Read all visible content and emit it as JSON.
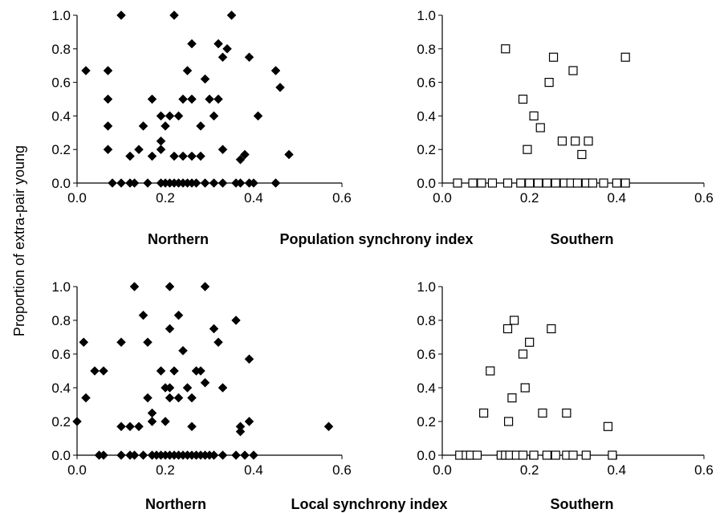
{
  "y_label": "Proportion of extra-pair young",
  "rows": [
    {
      "left_label": "Northern",
      "center_label": "Population synchrony index",
      "right_label": "Southern"
    },
    {
      "left_label": "Northern",
      "center_label": "Local synchrony index",
      "right_label": "Southern"
    }
  ],
  "chart_data": [
    {
      "type": "scatter",
      "name": "Northern - Population synchrony index",
      "marker": "filled-diamond",
      "color": "#000000",
      "xlim": [
        0,
        0.6
      ],
      "ylim": [
        0,
        1.0
      ],
      "xticks": [
        "0.0",
        "0.2",
        "0.4",
        "0.6"
      ],
      "yticks": [
        "0.0",
        "0.2",
        "0.4",
        "0.6",
        "0.8",
        "1.0"
      ],
      "points": [
        [
          0.02,
          0.67
        ],
        [
          0.07,
          0.67
        ],
        [
          0.07,
          0.5
        ],
        [
          0.07,
          0.34
        ],
        [
          0.07,
          0.2
        ],
        [
          0.1,
          1.0
        ],
        [
          0.12,
          0.16
        ],
        [
          0.14,
          0.2
        ],
        [
          0.15,
          0.34
        ],
        [
          0.17,
          0.5
        ],
        [
          0.17,
          0.16
        ],
        [
          0.19,
          0.4
        ],
        [
          0.19,
          0.25
        ],
        [
          0.19,
          0.2
        ],
        [
          0.2,
          0.34
        ],
        [
          0.21,
          0.4
        ],
        [
          0.22,
          1.0
        ],
        [
          0.22,
          0.16
        ],
        [
          0.23,
          0.4
        ],
        [
          0.24,
          0.5
        ],
        [
          0.24,
          0.16
        ],
        [
          0.25,
          0.67
        ],
        [
          0.26,
          0.83
        ],
        [
          0.26,
          0.5
        ],
        [
          0.26,
          0.16
        ],
        [
          0.28,
          0.34
        ],
        [
          0.28,
          0.16
        ],
        [
          0.29,
          0.62
        ],
        [
          0.3,
          0.5
        ],
        [
          0.31,
          0.4
        ],
        [
          0.32,
          0.5
        ],
        [
          0.32,
          0.83
        ],
        [
          0.33,
          0.75
        ],
        [
          0.33,
          0.2
        ],
        [
          0.34,
          0.8
        ],
        [
          0.35,
          1.0
        ],
        [
          0.37,
          0.14
        ],
        [
          0.38,
          0.17
        ],
        [
          0.39,
          0.75
        ],
        [
          0.41,
          0.4
        ],
        [
          0.45,
          0.67
        ],
        [
          0.46,
          0.57
        ],
        [
          0.48,
          0.17
        ],
        [
          0.08,
          0.0
        ],
        [
          0.1,
          0.0
        ],
        [
          0.12,
          0.0
        ],
        [
          0.13,
          0.0
        ],
        [
          0.16,
          0.0
        ],
        [
          0.19,
          0.0
        ],
        [
          0.2,
          0.0
        ],
        [
          0.21,
          0.0
        ],
        [
          0.22,
          0.0
        ],
        [
          0.23,
          0.0
        ],
        [
          0.24,
          0.0
        ],
        [
          0.25,
          0.0
        ],
        [
          0.26,
          0.0
        ],
        [
          0.27,
          0.0
        ],
        [
          0.29,
          0.0
        ],
        [
          0.31,
          0.0
        ],
        [
          0.33,
          0.0
        ],
        [
          0.36,
          0.0
        ],
        [
          0.37,
          0.0
        ],
        [
          0.39,
          0.0
        ],
        [
          0.4,
          0.0
        ],
        [
          0.45,
          0.0
        ]
      ]
    },
    {
      "type": "scatter",
      "name": "Southern - Population synchrony index",
      "marker": "open-square",
      "color": "#000000",
      "xlim": [
        0,
        0.6
      ],
      "ylim": [
        0,
        1.0
      ],
      "xticks": [
        "0.0",
        "0.2",
        "0.4",
        "0.6"
      ],
      "yticks": [
        "0.0",
        "0.2",
        "0.4",
        "0.6",
        "0.8",
        "1.0"
      ],
      "points": [
        [
          0.145,
          0.8
        ],
        [
          0.185,
          0.5
        ],
        [
          0.195,
          0.2
        ],
        [
          0.21,
          0.4
        ],
        [
          0.225,
          0.33
        ],
        [
          0.245,
          0.6
        ],
        [
          0.255,
          0.75
        ],
        [
          0.275,
          0.25
        ],
        [
          0.3,
          0.67
        ],
        [
          0.305,
          0.25
        ],
        [
          0.32,
          0.17
        ],
        [
          0.335,
          0.25
        ],
        [
          0.42,
          0.75
        ],
        [
          0.035,
          0.0
        ],
        [
          0.07,
          0.0
        ],
        [
          0.09,
          0.0
        ],
        [
          0.115,
          0.0
        ],
        [
          0.15,
          0.0
        ],
        [
          0.18,
          0.0
        ],
        [
          0.2,
          0.0
        ],
        [
          0.22,
          0.0
        ],
        [
          0.24,
          0.0
        ],
        [
          0.26,
          0.0
        ],
        [
          0.28,
          0.0
        ],
        [
          0.295,
          0.0
        ],
        [
          0.31,
          0.0
        ],
        [
          0.33,
          0.0
        ],
        [
          0.345,
          0.0
        ],
        [
          0.37,
          0.0
        ],
        [
          0.4,
          0.0
        ],
        [
          0.42,
          0.0
        ]
      ]
    },
    {
      "type": "scatter",
      "name": "Northern - Local synchrony index",
      "marker": "filled-diamond",
      "color": "#000000",
      "xlim": [
        0,
        0.6
      ],
      "ylim": [
        0,
        1.0
      ],
      "xticks": [
        "0.0",
        "0.2",
        "0.4",
        "0.6"
      ],
      "yticks": [
        "0.0",
        "0.2",
        "0.4",
        "0.6",
        "0.8",
        "1.0"
      ],
      "points": [
        [
          0.0,
          0.2
        ],
        [
          0.015,
          0.67
        ],
        [
          0.02,
          0.34
        ],
        [
          0.04,
          0.5
        ],
        [
          0.06,
          0.5
        ],
        [
          0.1,
          0.67
        ],
        [
          0.1,
          0.17
        ],
        [
          0.12,
          0.17
        ],
        [
          0.13,
          1.0
        ],
        [
          0.14,
          0.17
        ],
        [
          0.15,
          0.83
        ],
        [
          0.16,
          0.34
        ],
        [
          0.16,
          0.67
        ],
        [
          0.17,
          0.25
        ],
        [
          0.17,
          0.2
        ],
        [
          0.19,
          0.5
        ],
        [
          0.2,
          0.4
        ],
        [
          0.2,
          0.2
        ],
        [
          0.21,
          1.0
        ],
        [
          0.21,
          0.75
        ],
        [
          0.21,
          0.4
        ],
        [
          0.21,
          0.34
        ],
        [
          0.22,
          0.5
        ],
        [
          0.23,
          0.83
        ],
        [
          0.23,
          0.34
        ],
        [
          0.24,
          0.62
        ],
        [
          0.25,
          0.4
        ],
        [
          0.26,
          0.34
        ],
        [
          0.26,
          0.17
        ],
        [
          0.27,
          0.5
        ],
        [
          0.28,
          0.5
        ],
        [
          0.29,
          0.43
        ],
        [
          0.29,
          1.0
        ],
        [
          0.31,
          0.75
        ],
        [
          0.32,
          0.67
        ],
        [
          0.33,
          0.4
        ],
        [
          0.36,
          0.8
        ],
        [
          0.37,
          0.17
        ],
        [
          0.37,
          0.14
        ],
        [
          0.39,
          0.2
        ],
        [
          0.39,
          0.57
        ],
        [
          0.57,
          0.17
        ],
        [
          0.05,
          0.0
        ],
        [
          0.06,
          0.0
        ],
        [
          0.1,
          0.0
        ],
        [
          0.12,
          0.0
        ],
        [
          0.13,
          0.0
        ],
        [
          0.15,
          0.0
        ],
        [
          0.17,
          0.0
        ],
        [
          0.18,
          0.0
        ],
        [
          0.19,
          0.0
        ],
        [
          0.2,
          0.0
        ],
        [
          0.21,
          0.0
        ],
        [
          0.22,
          0.0
        ],
        [
          0.23,
          0.0
        ],
        [
          0.24,
          0.0
        ],
        [
          0.25,
          0.0
        ],
        [
          0.26,
          0.0
        ],
        [
          0.27,
          0.0
        ],
        [
          0.28,
          0.0
        ],
        [
          0.29,
          0.0
        ],
        [
          0.3,
          0.0
        ],
        [
          0.31,
          0.0
        ],
        [
          0.33,
          0.0
        ],
        [
          0.36,
          0.0
        ],
        [
          0.38,
          0.0
        ],
        [
          0.4,
          0.0
        ]
      ]
    },
    {
      "type": "scatter",
      "name": "Southern - Local synchrony index",
      "marker": "open-square",
      "color": "#000000",
      "xlim": [
        0,
        0.6
      ],
      "ylim": [
        0,
        1.0
      ],
      "xticks": [
        "0.0",
        "0.2",
        "0.4",
        "0.6"
      ],
      "yticks": [
        "0.0",
        "0.2",
        "0.4",
        "0.6",
        "0.8",
        "1.0"
      ],
      "points": [
        [
          0.095,
          0.25
        ],
        [
          0.11,
          0.5
        ],
        [
          0.15,
          0.75
        ],
        [
          0.152,
          0.2
        ],
        [
          0.16,
          0.34
        ],
        [
          0.165,
          0.8
        ],
        [
          0.185,
          0.6
        ],
        [
          0.19,
          0.4
        ],
        [
          0.2,
          0.67
        ],
        [
          0.23,
          0.25
        ],
        [
          0.25,
          0.75
        ],
        [
          0.285,
          0.25
        ],
        [
          0.38,
          0.17
        ],
        [
          0.04,
          0.0
        ],
        [
          0.055,
          0.0
        ],
        [
          0.065,
          0.0
        ],
        [
          0.08,
          0.0
        ],
        [
          0.135,
          0.0
        ],
        [
          0.145,
          0.0
        ],
        [
          0.155,
          0.0
        ],
        [
          0.17,
          0.0
        ],
        [
          0.185,
          0.0
        ],
        [
          0.21,
          0.0
        ],
        [
          0.24,
          0.0
        ],
        [
          0.26,
          0.0
        ],
        [
          0.285,
          0.0
        ],
        [
          0.3,
          0.0
        ],
        [
          0.33,
          0.0
        ],
        [
          0.39,
          0.0
        ]
      ]
    }
  ]
}
